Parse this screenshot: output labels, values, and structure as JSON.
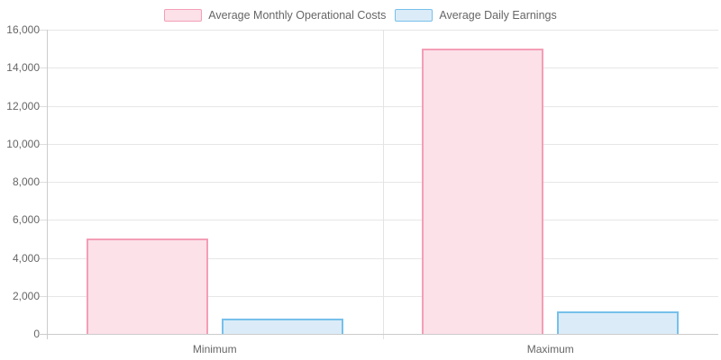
{
  "chart_data": {
    "type": "bar",
    "title": "",
    "categories": [
      "Minimum",
      "Maximum"
    ],
    "series": [
      {
        "name": "Average Monthly Operational Costs",
        "values": [
          5000,
          15000
        ],
        "fill_color": "#fce1e9",
        "border_color": "#f49eb6"
      },
      {
        "name": "Average Daily Earnings",
        "values": [
          800,
          1200
        ],
        "fill_color": "#dbecf8",
        "border_color": "#77c0eb"
      }
    ],
    "xlabel": "",
    "ylabel": "",
    "ylim": [
      0,
      16000
    ],
    "ytick_step": 2000,
    "ytick_labels": [
      "0",
      "2,000",
      "4,000",
      "6,000",
      "8,000",
      "10,000",
      "12,000",
      "14,000",
      "16,000"
    ],
    "grid": true,
    "legend_position": "top"
  },
  "colors": {
    "background": "#ffffff",
    "gridline": "#e6e6e6",
    "axis": "#cccccc",
    "tick": "#dddddd",
    "label_text": "#666666"
  }
}
